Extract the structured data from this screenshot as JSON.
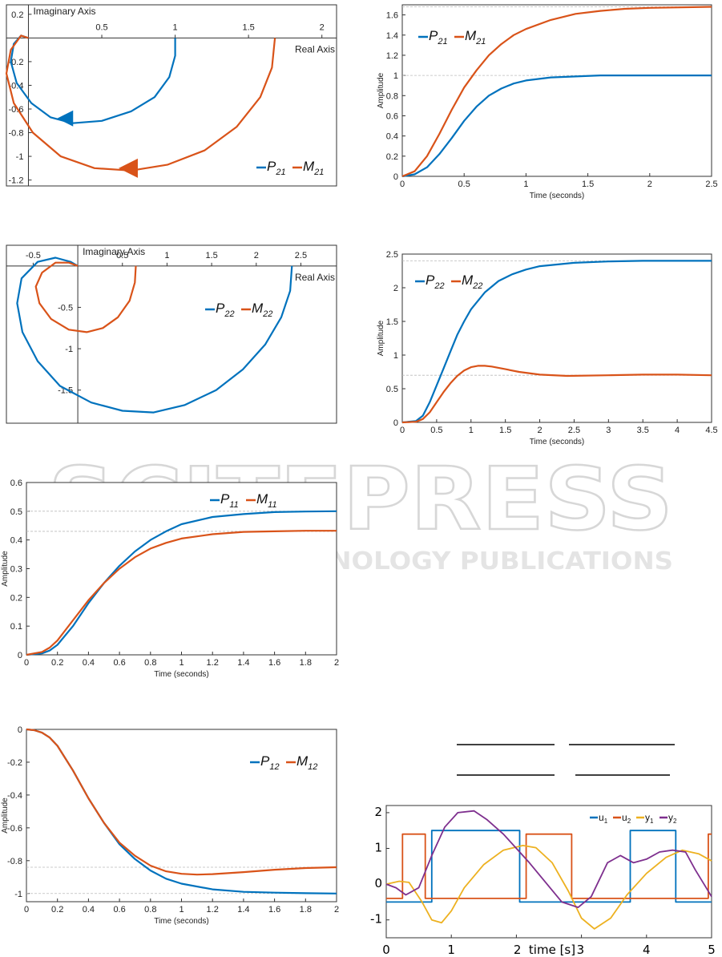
{
  "colors": {
    "p": "#0072BD",
    "m": "#D95319",
    "y1": "#EDB120",
    "y2": "#7E2F8E"
  },
  "watermark": {
    "main": "SCITEPRESS",
    "sub": "SCIENCE AND TECHNOLOGY PUBLICATIONS"
  },
  "chart_data": [
    {
      "id": "nyquist-21",
      "type": "line",
      "xlabel": "Real Axis",
      "ylabel": "Imaginary Axis",
      "xlim": [
        -0.15,
        2.1
      ],
      "ylim": [
        -1.25,
        0.28
      ],
      "xticks": [
        0.5,
        1,
        1.5,
        2
      ],
      "yticks": [
        0.2,
        -0.2,
        -0.4,
        -0.6,
        -0.8,
        -1,
        -1.2
      ],
      "yticklabels": [
        "0.2",
        "-0.2",
        "-0.4",
        "-0.6",
        "-0.8",
        "-1",
        "-1.2"
      ],
      "legend": {
        "names": [
          "P",
          "M"
        ],
        "subs": [
          "21",
          "21"
        ]
      },
      "series": [
        {
          "name": "P21",
          "x": [
            1.0,
            1.0,
            0.96,
            0.86,
            0.7,
            0.5,
            0.3,
            0.15,
            0.02,
            -0.08,
            -0.12,
            -0.1,
            -0.05,
            0.0
          ],
          "y": [
            0.0,
            -0.15,
            -0.33,
            -0.5,
            -0.62,
            -0.7,
            -0.72,
            -0.67,
            -0.55,
            -0.38,
            -0.2,
            -0.05,
            0.02,
            0.0
          ]
        },
        {
          "name": "M21",
          "x": [
            1.68,
            1.66,
            1.58,
            1.42,
            1.2,
            0.95,
            0.7,
            0.45,
            0.22,
            0.03,
            -0.1,
            -0.15,
            -0.12,
            -0.05,
            0.0
          ],
          "y": [
            0.0,
            -0.25,
            -0.5,
            -0.75,
            -0.95,
            -1.07,
            -1.12,
            -1.1,
            -1.0,
            -0.8,
            -0.55,
            -0.3,
            -0.1,
            0.02,
            0.0
          ]
        }
      ]
    },
    {
      "id": "step-21",
      "type": "line",
      "xlabel": "Time (seconds)",
      "ylabel": "Amplitude",
      "xlim": [
        0,
        2.5
      ],
      "ylim": [
        0,
        1.7
      ],
      "xticks": [
        0,
        0.5,
        1,
        1.5,
        2,
        2.5
      ],
      "xticklabels": [
        "0",
        "0.5",
        "1",
        "1.5",
        "2",
        "2.5"
      ],
      "yticks": [
        0,
        0.2,
        0.4,
        0.6,
        0.8,
        1,
        1.2,
        1.4,
        1.6
      ],
      "yticklabels": [
        "0",
        "0.2",
        "0.4",
        "0.6",
        "0.8",
        "1",
        "1.2",
        "1.4",
        "1.6"
      ],
      "reflines": [
        1.0,
        1.68
      ],
      "legend": {
        "names": [
          "P",
          "M"
        ],
        "subs": [
          "21",
          "21"
        ]
      },
      "series": [
        {
          "name": "P21",
          "x": [
            0,
            0.1,
            0.2,
            0.3,
            0.4,
            0.5,
            0.6,
            0.7,
            0.8,
            0.9,
            1.0,
            1.2,
            1.4,
            1.6,
            1.8,
            2.0,
            2.5
          ],
          "y": [
            0,
            0.02,
            0.09,
            0.22,
            0.38,
            0.55,
            0.69,
            0.8,
            0.87,
            0.92,
            0.95,
            0.98,
            0.99,
            1.0,
            1.0,
            1.0,
            1.0
          ]
        },
        {
          "name": "M21",
          "x": [
            0,
            0.1,
            0.2,
            0.3,
            0.4,
            0.5,
            0.6,
            0.7,
            0.8,
            0.9,
            1.0,
            1.2,
            1.4,
            1.6,
            1.8,
            2.0,
            2.5
          ],
          "y": [
            0,
            0.05,
            0.2,
            0.42,
            0.66,
            0.88,
            1.05,
            1.2,
            1.31,
            1.4,
            1.46,
            1.55,
            1.61,
            1.64,
            1.66,
            1.67,
            1.68
          ]
        }
      ]
    },
    {
      "id": "nyquist-22",
      "type": "line",
      "xlabel": "Real Axis",
      "ylabel": "Imaginary Axis",
      "xlim": [
        -0.8,
        2.9
      ],
      "ylim": [
        -1.9,
        0.25
      ],
      "xticks": [
        -0.5,
        0.5,
        1,
        1.5,
        2,
        2.5
      ],
      "xticklabels": [
        "-0.5",
        "0.5",
        "1",
        "1.5",
        "2",
        "2.5"
      ],
      "yticks": [
        -0.5,
        -1,
        -1.5
      ],
      "yticklabels": [
        "-0.5",
        "-1",
        "-1.5"
      ],
      "legend": {
        "names": [
          "P",
          "M"
        ],
        "subs": [
          "22",
          "22"
        ]
      },
      "series": [
        {
          "name": "P22",
          "x": [
            2.4,
            2.38,
            2.28,
            2.1,
            1.85,
            1.55,
            1.2,
            0.85,
            0.5,
            0.15,
            -0.2,
            -0.45,
            -0.62,
            -0.68,
            -0.63,
            -0.45,
            -0.25,
            -0.08,
            0.0
          ],
          "y": [
            0.0,
            -0.3,
            -0.62,
            -0.95,
            -1.25,
            -1.5,
            -1.68,
            -1.77,
            -1.75,
            -1.65,
            -1.45,
            -1.15,
            -0.8,
            -0.45,
            -0.15,
            0.05,
            0.1,
            0.05,
            0.0
          ]
        },
        {
          "name": "M22",
          "x": [
            0.65,
            0.64,
            0.58,
            0.45,
            0.28,
            0.1,
            -0.1,
            -0.3,
            -0.43,
            -0.47,
            -0.4,
            -0.25,
            -0.1,
            0.0
          ],
          "y": [
            0.0,
            -0.2,
            -0.42,
            -0.62,
            -0.75,
            -0.8,
            -0.77,
            -0.64,
            -0.45,
            -0.25,
            -0.08,
            0.04,
            0.04,
            0.0
          ]
        }
      ]
    },
    {
      "id": "step-22",
      "type": "line",
      "xlabel": "Time (seconds)",
      "ylabel": "Amplitude",
      "xlim": [
        0,
        4.5
      ],
      "ylim": [
        0,
        2.5
      ],
      "xticks": [
        0,
        0.5,
        1,
        1.5,
        2,
        2.5,
        3,
        3.5,
        4,
        4.5
      ],
      "xticklabels": [
        "0",
        "0.5",
        "1",
        "1.5",
        "2",
        "2.5",
        "3",
        "3.5",
        "4",
        "4.5"
      ],
      "yticks": [
        0,
        0.5,
        1,
        1.5,
        2,
        2.5
      ],
      "yticklabels": [
        "0",
        "0.5",
        "1",
        "1.5",
        "2",
        "2.5"
      ],
      "reflines": [
        0.7,
        2.4
      ],
      "legend": {
        "names": [
          "P",
          "M"
        ],
        "subs": [
          "22",
          "22"
        ]
      },
      "series": [
        {
          "name": "P22",
          "x": [
            0,
            0.2,
            0.3,
            0.4,
            0.5,
            0.6,
            0.7,
            0.8,
            0.9,
            1.0,
            1.2,
            1.4,
            1.6,
            1.8,
            2.0,
            2.5,
            3.0,
            3.5,
            4.0,
            4.5
          ],
          "y": [
            0,
            0.02,
            0.1,
            0.3,
            0.55,
            0.8,
            1.05,
            1.3,
            1.5,
            1.68,
            1.93,
            2.1,
            2.2,
            2.27,
            2.32,
            2.37,
            2.39,
            2.4,
            2.4,
            2.4
          ]
        },
        {
          "name": "M22",
          "x": [
            0,
            0.2,
            0.3,
            0.4,
            0.5,
            0.6,
            0.7,
            0.8,
            0.9,
            1.0,
            1.1,
            1.2,
            1.3,
            1.5,
            1.7,
            2.0,
            2.4,
            3.0,
            3.5,
            4.0,
            4.5
          ],
          "y": [
            0,
            0.01,
            0.05,
            0.15,
            0.3,
            0.45,
            0.58,
            0.69,
            0.77,
            0.82,
            0.84,
            0.84,
            0.83,
            0.79,
            0.75,
            0.71,
            0.69,
            0.7,
            0.71,
            0.71,
            0.7
          ]
        }
      ]
    },
    {
      "id": "step-11",
      "type": "line",
      "xlabel": "Time (seconds)",
      "ylabel": "Amplitude",
      "xlim": [
        0,
        2
      ],
      "ylim": [
        0,
        0.6
      ],
      "xticks": [
        0,
        0.2,
        0.4,
        0.6,
        0.8,
        1,
        1.2,
        1.4,
        1.6,
        1.8,
        2
      ],
      "xticklabels": [
        "0",
        "0.2",
        "0.4",
        "0.6",
        "0.8",
        "1",
        "1.2",
        "1.4",
        "1.6",
        "1.8",
        "2"
      ],
      "yticks": [
        0,
        0.1,
        0.2,
        0.3,
        0.4,
        0.5,
        0.6
      ],
      "yticklabels": [
        "0",
        "0.1",
        "0.2",
        "0.3",
        "0.4",
        "0.5",
        "0.6"
      ],
      "reflines": [
        0.5,
        0.43
      ],
      "legend": {
        "names": [
          "P",
          "M"
        ],
        "subs": [
          "11",
          "11"
        ]
      },
      "series": [
        {
          "name": "P11",
          "x": [
            0,
            0.1,
            0.15,
            0.2,
            0.3,
            0.4,
            0.5,
            0.6,
            0.7,
            0.8,
            0.9,
            1.0,
            1.2,
            1.4,
            1.6,
            1.8,
            2.0
          ],
          "y": [
            0,
            0.005,
            0.015,
            0.035,
            0.1,
            0.18,
            0.25,
            0.31,
            0.36,
            0.4,
            0.43,
            0.455,
            0.48,
            0.49,
            0.497,
            0.499,
            0.5
          ]
        },
        {
          "name": "M11",
          "x": [
            0,
            0.1,
            0.15,
            0.2,
            0.3,
            0.4,
            0.5,
            0.6,
            0.7,
            0.8,
            0.9,
            1.0,
            1.2,
            1.4,
            1.6,
            1.8,
            2.0
          ],
          "y": [
            0,
            0.01,
            0.025,
            0.05,
            0.12,
            0.19,
            0.25,
            0.3,
            0.34,
            0.37,
            0.39,
            0.405,
            0.42,
            0.428,
            0.43,
            0.432,
            0.432
          ]
        }
      ]
    },
    {
      "id": "step-12",
      "type": "line",
      "xlabel": "Time (seconds)",
      "ylabel": "Amplitude",
      "xlim": [
        0,
        2
      ],
      "ylim": [
        -1.05,
        0.0
      ],
      "xticks": [
        0,
        0.2,
        0.4,
        0.6,
        0.8,
        1,
        1.2,
        1.4,
        1.6,
        1.8,
        2
      ],
      "xticklabels": [
        "0",
        "0.2",
        "0.4",
        "0.6",
        "0.8",
        "1",
        "1.2",
        "1.4",
        "1.6",
        "1.8",
        "2"
      ],
      "yticks": [
        0,
        -0.2,
        -0.4,
        -0.6,
        -0.8,
        -1
      ],
      "yticklabels": [
        "0",
        "-0.2",
        "-0.4",
        "-0.6",
        "-0.8",
        "-1"
      ],
      "reflines": [
        -0.84,
        -1.0
      ],
      "legend": {
        "names": [
          "P",
          "M"
        ],
        "subs": [
          "12",
          "12"
        ]
      },
      "series": [
        {
          "name": "P12",
          "x": [
            0,
            0.05,
            0.1,
            0.15,
            0.2,
            0.3,
            0.4,
            0.5,
            0.6,
            0.7,
            0.8,
            0.9,
            1.0,
            1.2,
            1.4,
            1.6,
            1.8,
            2.0
          ],
          "y": [
            0,
            -0.005,
            -0.02,
            -0.05,
            -0.1,
            -0.25,
            -0.42,
            -0.57,
            -0.7,
            -0.79,
            -0.86,
            -0.91,
            -0.94,
            -0.975,
            -0.99,
            -0.995,
            -0.998,
            -1.0
          ]
        },
        {
          "name": "M12",
          "x": [
            0,
            0.05,
            0.1,
            0.15,
            0.2,
            0.3,
            0.4,
            0.5,
            0.6,
            0.7,
            0.8,
            0.9,
            1.0,
            1.1,
            1.2,
            1.4,
            1.6,
            1.8,
            2.0
          ],
          "y": [
            0,
            -0.005,
            -0.02,
            -0.05,
            -0.1,
            -0.25,
            -0.42,
            -0.57,
            -0.69,
            -0.77,
            -0.83,
            -0.865,
            -0.88,
            -0.885,
            -0.882,
            -0.87,
            -0.855,
            -0.845,
            -0.84
          ]
        }
      ]
    },
    {
      "id": "signals",
      "type": "line",
      "xlabel": "time [s]",
      "xlim": [
        0,
        5
      ],
      "ylim": [
        -1.5,
        2.2
      ],
      "xticks": [
        0,
        1,
        2,
        3,
        4,
        5
      ],
      "xticklabels": [
        "0",
        "1",
        "2",
        "3",
        "4",
        "5"
      ],
      "yticks": [
        2,
        1,
        0,
        -1
      ],
      "yticklabels": [
        "2",
        "1",
        "0",
        "-1"
      ],
      "legend": {
        "names": [
          "u",
          "u",
          "y",
          "y"
        ],
        "subs": [
          "1",
          "2",
          "1",
          "2"
        ]
      },
      "series": [
        {
          "name": "u1",
          "x": [
            0,
            0.7,
            0.7,
            2.05,
            2.05,
            3.75,
            3.75,
            4.45,
            4.45,
            5.0
          ],
          "y": [
            -0.5,
            -0.5,
            1.5,
            1.5,
            -0.5,
            -0.5,
            1.5,
            1.5,
            -0.5,
            -0.5
          ]
        },
        {
          "name": "u2",
          "x": [
            0,
            0.25,
            0.25,
            0.6,
            0.6,
            1.5,
            1.5,
            2.15,
            2.15,
            2.85,
            2.85,
            3.5,
            3.5,
            4.3,
            4.3,
            4.95,
            4.95,
            5.0
          ],
          "y": [
            -0.4,
            -0.4,
            1.4,
            1.4,
            -0.4,
            -0.4,
            -0.4,
            -0.4,
            1.4,
            1.4,
            -0.4,
            -0.4,
            -0.4,
            -0.4,
            -0.4,
            -0.4,
            1.4,
            1.4
          ]
        },
        {
          "name": "y1",
          "x": [
            0,
            0.2,
            0.35,
            0.55,
            0.7,
            0.85,
            1.0,
            1.2,
            1.5,
            1.8,
            2.1,
            2.3,
            2.55,
            2.8,
            3.0,
            3.2,
            3.45,
            3.7,
            4.0,
            4.3,
            4.55,
            4.8,
            5.0
          ],
          "y": [
            0,
            0.08,
            0.05,
            -0.5,
            -1.0,
            -1.08,
            -0.75,
            -0.1,
            0.55,
            0.95,
            1.08,
            1.02,
            0.6,
            -0.2,
            -0.95,
            -1.25,
            -0.95,
            -0.3,
            0.3,
            0.75,
            0.95,
            0.85,
            0.65
          ]
        },
        {
          "name": "y2",
          "x": [
            0,
            0.15,
            0.3,
            0.5,
            0.7,
            0.9,
            1.1,
            1.35,
            1.55,
            1.8,
            2.0,
            2.2,
            2.45,
            2.7,
            2.95,
            3.15,
            3.4,
            3.6,
            3.8,
            4.0,
            4.2,
            4.4,
            4.6,
            4.75,
            4.9,
            5.0
          ],
          "y": [
            0,
            -0.1,
            -0.3,
            -0.1,
            0.8,
            1.6,
            2.0,
            2.05,
            1.8,
            1.4,
            1.0,
            0.6,
            0.05,
            -0.5,
            -0.65,
            -0.35,
            0.6,
            0.8,
            0.6,
            0.7,
            0.9,
            0.95,
            0.9,
            0.4,
            -0.05,
            -0.35
          ]
        }
      ]
    }
  ]
}
